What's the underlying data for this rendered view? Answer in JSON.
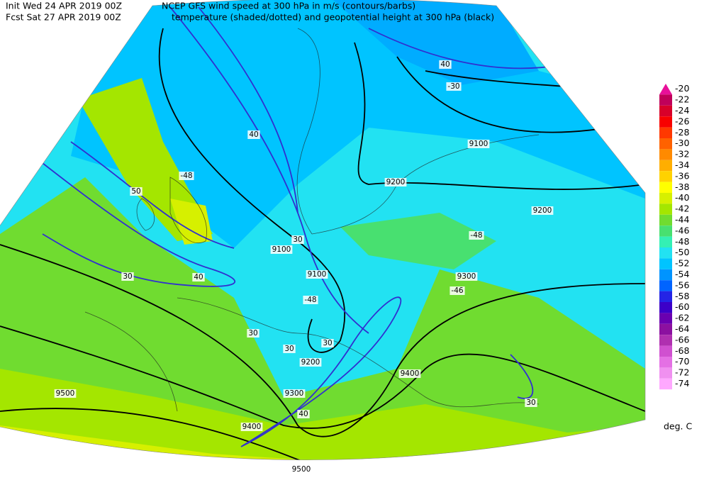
{
  "header": {
    "init": "Init  Wed 24 APR 2019 00Z",
    "forecast": "Fcst Sat 27 APR 2019 00Z",
    "title_line_1": "NCEP GFS wind speed at 300 hPa in m/s (contours/barbs)",
    "title_line_2": "temperature (shaded/dotted) and geopotential height at 300 hPa (black)"
  },
  "legend": {
    "unit": "deg. C",
    "items": [
      {
        "label": "-20",
        "color": "#e8109a"
      },
      {
        "label": "-22",
        "color": "#c0005a"
      },
      {
        "label": "-24",
        "color": "#d8002a"
      },
      {
        "label": "-26",
        "color": "#f80000"
      },
      {
        "label": "-28",
        "color": "#ff3800"
      },
      {
        "label": "-30",
        "color": "#ff6200"
      },
      {
        "label": "-32",
        "color": "#ff8a00"
      },
      {
        "label": "-34",
        "color": "#ffae00"
      },
      {
        "label": "-36",
        "color": "#ffd200"
      },
      {
        "label": "-38",
        "color": "#ffff00"
      },
      {
        "label": "-40",
        "color": "#d6f000"
      },
      {
        "label": "-42",
        "color": "#a4e600"
      },
      {
        "label": "-44",
        "color": "#70dc30"
      },
      {
        "label": "-46",
        "color": "#48e070"
      },
      {
        "label": "-48",
        "color": "#34f0b4"
      },
      {
        "label": "-50",
        "color": "#22e2f2"
      },
      {
        "label": "-52",
        "color": "#00c4ff"
      },
      {
        "label": "-54",
        "color": "#0094ff"
      },
      {
        "label": "-56",
        "color": "#0064ff"
      },
      {
        "label": "-58",
        "color": "#2424e6"
      },
      {
        "label": "-60",
        "color": "#3c00c8"
      },
      {
        "label": "-62",
        "color": "#6a00b0"
      },
      {
        "label": "-64",
        "color": "#8c10a0"
      },
      {
        "label": "-66",
        "color": "#b030b0"
      },
      {
        "label": "-68",
        "color": "#d050d0"
      },
      {
        "label": "-70",
        "color": "#e470e4"
      },
      {
        "label": "-72",
        "color": "#f090f0"
      },
      {
        "label": "-74",
        "color": "#ffa8ff"
      }
    ]
  },
  "map": {
    "contour_labels": [
      "9100",
      "9200",
      "9200",
      "9300",
      "9100",
      "9100",
      "9200",
      "9300",
      "9400",
      "9400",
      "9500",
      "9500",
      "30",
      "40",
      "30",
      "30",
      "30",
      "30",
      "40",
      "30",
      "40",
      "50",
      "40",
      "-48",
      "-48",
      "-48",
      "-30",
      "-46"
    ]
  }
}
